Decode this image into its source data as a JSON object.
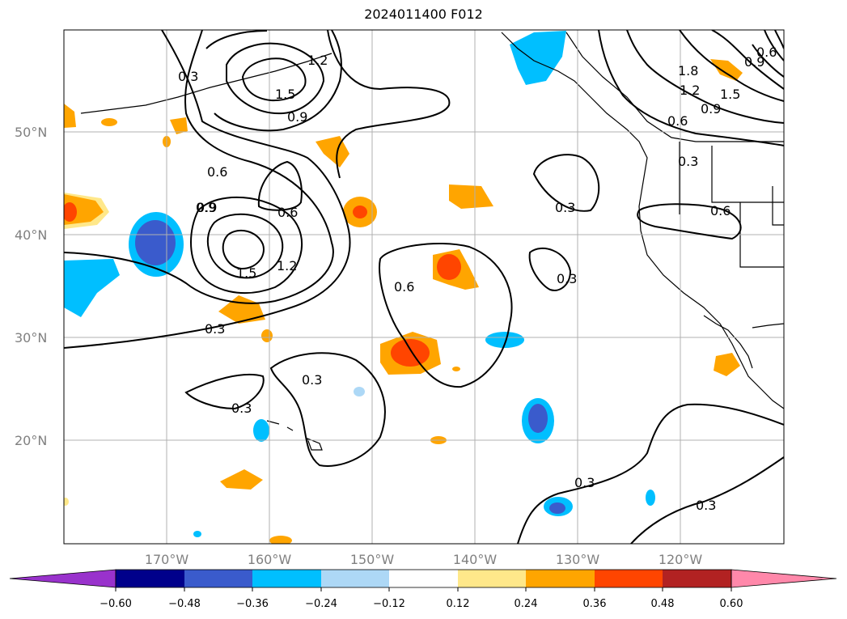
{
  "title": "2024011400 F012",
  "map": {
    "lat_labels": [
      "50°N",
      "40°N",
      "30°N",
      "20°N"
    ],
    "lon_labels": [
      "170°W",
      "160°W",
      "150°W",
      "140°W",
      "130°W",
      "120°W"
    ],
    "contour_labels": [
      "0.3",
      "0.9",
      "1.2",
      "1.5",
      "0.9",
      "0.6",
      "0.9",
      "0.6",
      "1.5",
      "1.2",
      "0.3",
      "0.3",
      "0.3",
      "0.6",
      "0.3",
      "0.3",
      "1.8",
      "1.2",
      "1.5",
      "0.9",
      "0.6",
      "0.6",
      "0.3",
      "0.6",
      "0.9",
      "0.3",
      "0.3"
    ],
    "gridlines": true,
    "land_color": "#ffffff",
    "contour_color": "#000000"
  },
  "colorbar": {
    "ticks": [
      "−0.60",
      "−0.48",
      "−0.36",
      "−0.24",
      "−0.12",
      "0.12",
      "0.24",
      "0.36",
      "0.48",
      "0.60"
    ],
    "colors": [
      "#9932cc",
      "#00008b",
      "#3a5bcc",
      "#00bfff",
      "#add8f6",
      "#ffffff",
      "#ffe88a",
      "#ffa500",
      "#ff4500",
      "#b22222",
      "#ff88aa"
    ]
  }
}
